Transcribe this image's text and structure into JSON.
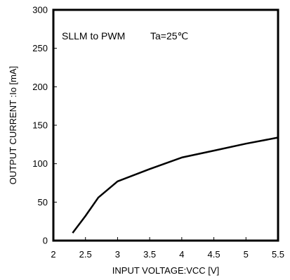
{
  "chart_data": {
    "type": "line",
    "xlabel": "INPUT VOLTAGE:VCC [V]",
    "ylabel": "OUTPUT CURRENT :Io [mA]",
    "xlim": [
      2,
      5.5
    ],
    "ylim": [
      0,
      300
    ],
    "x_ticks": [
      "2",
      "2.5",
      "3",
      "3.5",
      "4",
      "4.5",
      "5",
      "5.5"
    ],
    "y_ticks": [
      "0",
      "50",
      "100",
      "150",
      "200",
      "250",
      "300"
    ],
    "grid": false,
    "annotations": [
      "SLLM to PWM",
      "Ta=25℃"
    ],
    "series": [
      {
        "x": [
          2.3,
          2.5,
          2.7,
          3.0,
          3.5,
          4.0,
          4.5,
          5.0,
          5.5
        ],
        "y": [
          10,
          32,
          56,
          77,
          93,
          108,
          117,
          126,
          134
        ]
      }
    ]
  },
  "colors": {
    "line": "#000000",
    "frame": "#000000",
    "background": "#ffffff"
  }
}
